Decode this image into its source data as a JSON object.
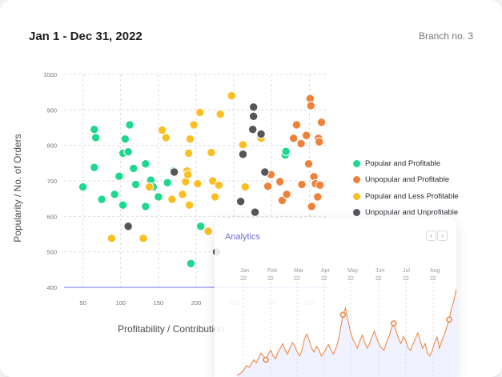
{
  "header": {
    "date_range": "Jan 1 - Dec 31, 2022",
    "branch": "Branch no. 3"
  },
  "chart_data": {
    "type": "scatter",
    "xlabel": "Profitability / Contribution",
    "ylabel": "Popularity / No. of Orders",
    "xlim": [
      25,
      375
    ],
    "ylim": [
      400,
      1000
    ],
    "x_ticks": [
      "50",
      "100",
      "150",
      "200",
      "250",
      "300",
      "350"
    ],
    "y_ticks": [
      "400",
      "500",
      "600",
      "700",
      "800",
      "900",
      "1000"
    ],
    "grid": true,
    "legend_position": "right",
    "series": [
      {
        "name": "Popular and Profitable",
        "color": "#1ed98d",
        "points": [
          [
            50,
            683
          ],
          [
            65,
            845
          ],
          [
            67,
            822
          ],
          [
            65,
            738
          ],
          [
            75,
            648
          ],
          [
            92,
            662
          ],
          [
            98,
            713
          ],
          [
            103,
            632
          ],
          [
            103,
            778
          ],
          [
            106,
            818
          ],
          [
            110,
            782
          ],
          [
            112,
            858
          ],
          [
            117,
            735
          ],
          [
            120,
            690
          ],
          [
            133,
            628
          ],
          [
            133,
            748
          ],
          [
            140,
            702
          ],
          [
            143,
            683
          ],
          [
            150,
            655
          ],
          [
            162,
            695
          ],
          [
            170,
            728
          ],
          [
            193,
            467
          ],
          [
            206,
            572
          ],
          [
            246,
            940
          ],
          [
            318,
            773
          ],
          [
            319,
            783
          ]
        ]
      },
      {
        "name": "Unpopular and Profitable",
        "color": "#ef8139",
        "points": [
          [
            295,
            685
          ],
          [
            299,
            718
          ],
          [
            311,
            698
          ],
          [
            314,
            645
          ],
          [
            320,
            662
          ],
          [
            329,
            820
          ],
          [
            333,
            858
          ],
          [
            339,
            805
          ],
          [
            340,
            690
          ],
          [
            346,
            828
          ],
          [
            349,
            748
          ],
          [
            351,
            932
          ],
          [
            352,
            912
          ],
          [
            353,
            628
          ],
          [
            356,
            712
          ],
          [
            358,
            692
          ],
          [
            361,
            655
          ],
          [
            362,
            820
          ],
          [
            363,
            810
          ],
          [
            364,
            688
          ],
          [
            366,
            865
          ]
        ]
      },
      {
        "name": "Popular and Less Profitable",
        "color": "#fbbf24",
        "points": [
          [
            88,
            538
          ],
          [
            130,
            538
          ],
          [
            138,
            683
          ],
          [
            155,
            843
          ],
          [
            160,
            822
          ],
          [
            168,
            648
          ],
          [
            182,
            662
          ],
          [
            186,
            698
          ],
          [
            188,
            728
          ],
          [
            189,
            718
          ],
          [
            190,
            778
          ],
          [
            191,
            632
          ],
          [
            192,
            818
          ],
          [
            197,
            858
          ],
          [
            202,
            692
          ],
          [
            205,
            893
          ],
          [
            216,
            558
          ],
          [
            220,
            780
          ],
          [
            222,
            700
          ],
          [
            225,
            655
          ],
          [
            230,
            688
          ],
          [
            232,
            888
          ],
          [
            247,
            940
          ],
          [
            262,
            802
          ],
          [
            265,
            683
          ],
          [
            286,
            820
          ]
        ]
      },
      {
        "name": "Unpopular and Unprofitable",
        "color": "#55555a",
        "points": [
          [
            110,
            572
          ],
          [
            171,
            725
          ],
          [
            227,
            500
          ],
          [
            259,
            642
          ],
          [
            262,
            775
          ],
          [
            275,
            845
          ],
          [
            276,
            882
          ],
          [
            276,
            908
          ],
          [
            278,
            612
          ],
          [
            286,
            832
          ],
          [
            291,
            725
          ]
        ]
      }
    ]
  },
  "analytics": {
    "title": "Analytics",
    "prev_label": "‹",
    "next_label": "›",
    "months": [
      {
        "month": "Jan",
        "year": "22"
      },
      {
        "month": "Feb",
        "year": "22"
      },
      {
        "month": "Mar",
        "year": "22"
      },
      {
        "month": "Apr",
        "year": "22"
      },
      {
        "month": "May",
        "year": "22"
      },
      {
        "month": "Jun",
        "year": "22"
      },
      {
        "month": "Jul",
        "year": "22"
      },
      {
        "month": "Aug",
        "year": "22"
      }
    ],
    "line_color": "#ef8139",
    "series": [
      2,
      3,
      5,
      8,
      12,
      10,
      14,
      18,
      15,
      20,
      25,
      22,
      18,
      24,
      28,
      22,
      19,
      26,
      30,
      35,
      28,
      24,
      30,
      36,
      32,
      26,
      22,
      28,
      40,
      45,
      38,
      30,
      26,
      32,
      28,
      22,
      25,
      30,
      34,
      28,
      24,
      30,
      38,
      52,
      65,
      72,
      60,
      48,
      40,
      35,
      30,
      38,
      44,
      36,
      30,
      35,
      42,
      48,
      40,
      34,
      30,
      28,
      36,
      42,
      50,
      56,
      48,
      40,
      35,
      42,
      38,
      30,
      28,
      34,
      40,
      46,
      38,
      30,
      35,
      25,
      22,
      28,
      36,
      42,
      30,
      38,
      44,
      52,
      60,
      72,
      80,
      92
    ]
  }
}
